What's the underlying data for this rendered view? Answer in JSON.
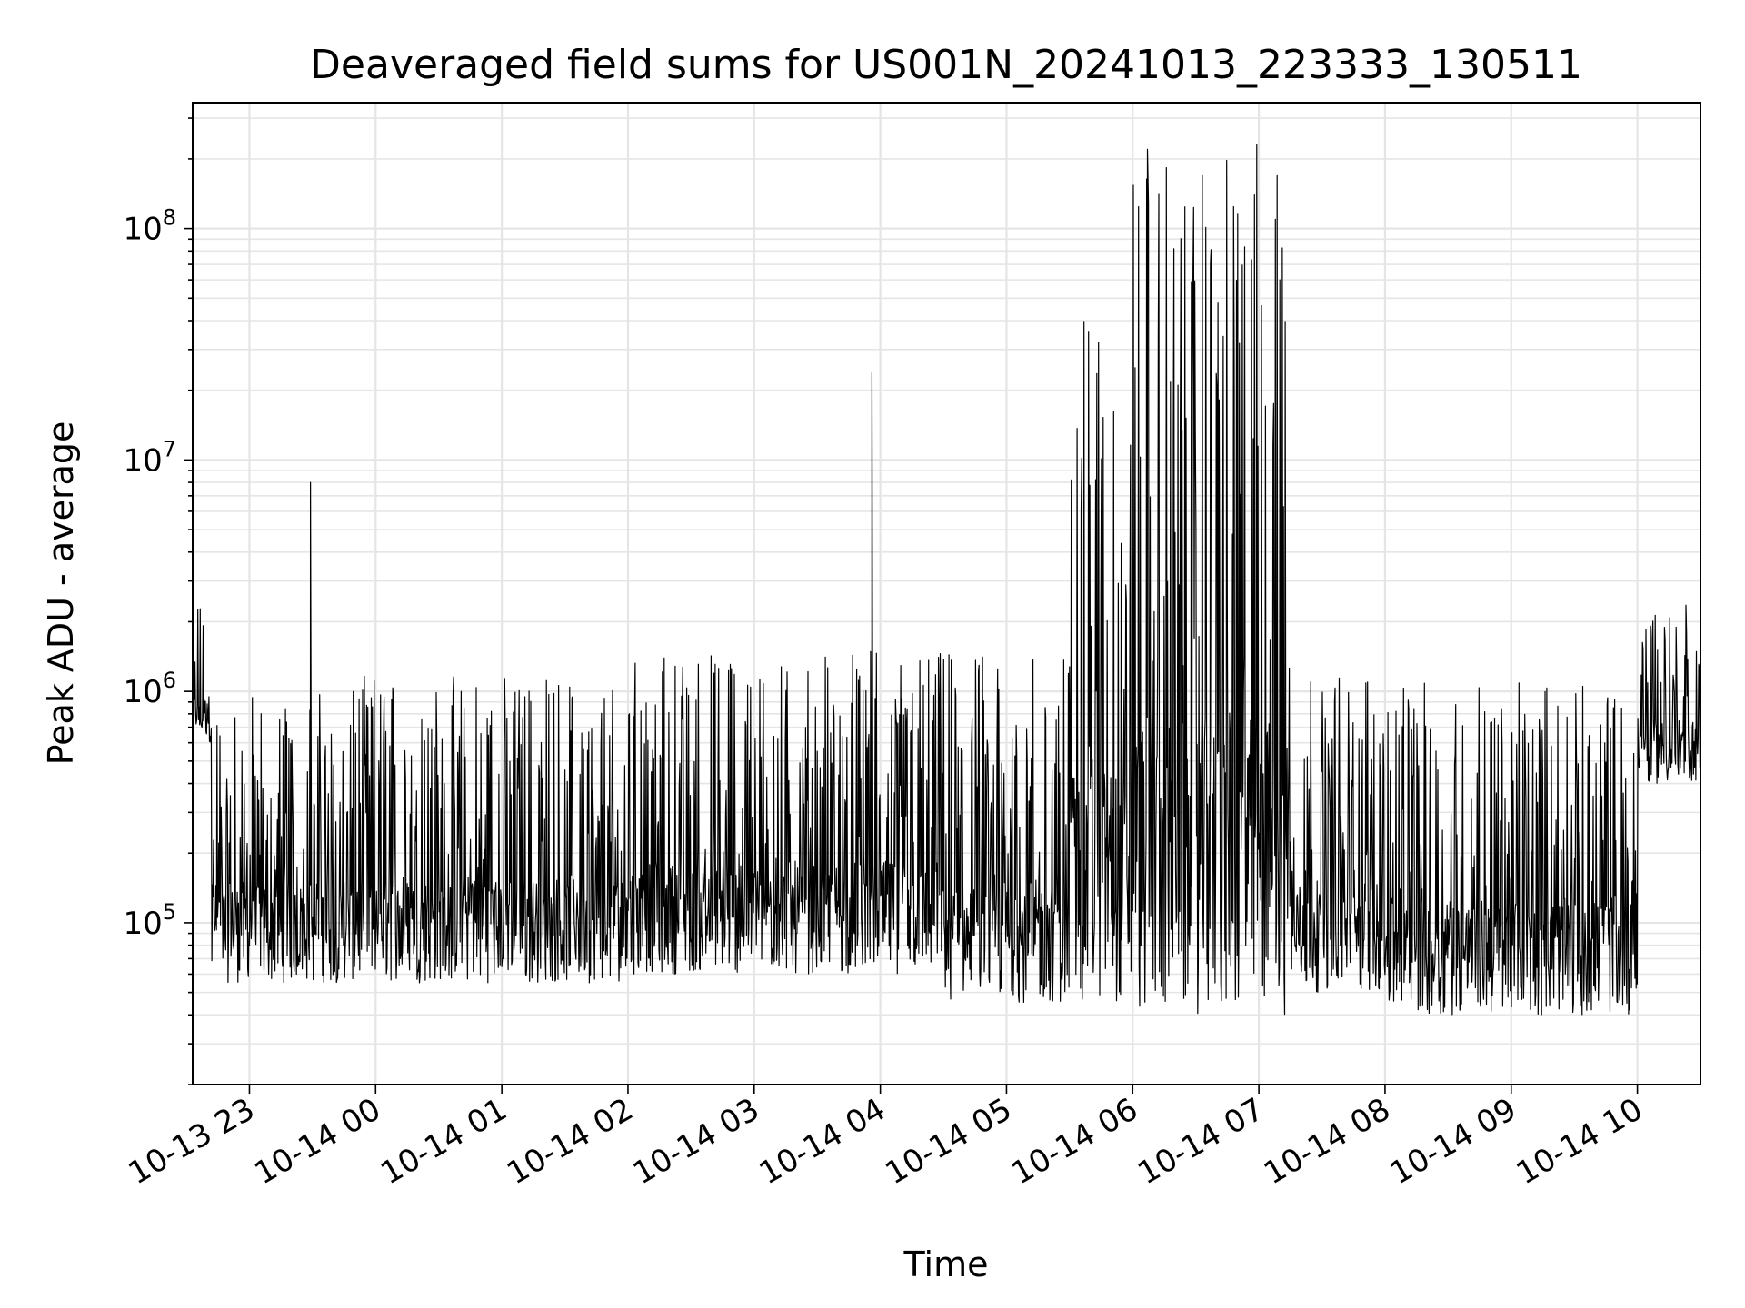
{
  "chart_data": {
    "type": "line",
    "title": "Deaveraged field sums for US001N_20241013_223333_130511",
    "xlabel": "Time",
    "ylabel": "Peak ADU - average",
    "y_scale": "log",
    "ylim": [
      20000,
      350000000
    ],
    "xlim": [
      "2024-10-13 22:33",
      "2024-10-14 10:30"
    ],
    "grid": true,
    "line_color": "#000000",
    "grid_color": "#e5e5e5",
    "x_ticks": [
      "2024-10-13 23:00",
      "2024-10-14 00:00",
      "2024-10-14 01:00",
      "2024-10-14 02:00",
      "2024-10-14 03:00",
      "2024-10-14 04:00",
      "2024-10-14 05:00",
      "2024-10-14 06:00",
      "2024-10-14 07:00",
      "2024-10-14 08:00",
      "2024-10-14 09:00",
      "2024-10-14 10:00"
    ],
    "x_tick_labels": [
      "10-13 23",
      "10-14 00",
      "10-14 01",
      "10-14 02",
      "10-14 03",
      "10-14 04",
      "10-14 05",
      "10-14 06",
      "10-14 07",
      "10-14 08",
      "10-14 09",
      "10-14 10"
    ],
    "y_ticks": [
      {
        "value": 100000,
        "base": "10",
        "exp": "5"
      },
      {
        "value": 1000000,
        "base": "10",
        "exp": "6"
      },
      {
        "value": 10000000,
        "base": "10",
        "exp": "7"
      },
      {
        "value": 100000000,
        "base": "10",
        "exp": "8"
      }
    ],
    "series": [
      {
        "segments": [
          {
            "start": "2024-10-13 22:33",
            "end": "2024-10-13 22:42",
            "floor": 600000,
            "high": 2400000
          },
          {
            "start": "2024-10-13 22:42",
            "end": "2024-10-13 23:50",
            "floor": 55000,
            "high": 1000000
          },
          {
            "start": "2024-10-13 23:50",
            "end": "2024-10-14 02:00",
            "floor": 55000,
            "high": 1200000
          },
          {
            "start": "2024-10-14 02:00",
            "end": "2024-10-14 04:30",
            "floor": 60000,
            "high": 1500000
          },
          {
            "start": "2024-10-14 04:30",
            "end": "2024-10-14 05:30",
            "floor": 45000,
            "high": 1500000
          },
          {
            "start": "2024-10-14 05:30",
            "end": "2024-10-14 06:00",
            "floor": 45000,
            "high": 40000000
          },
          {
            "start": "2024-10-14 06:00",
            "end": "2024-10-14 07:15",
            "floor": 40000,
            "high": 200000000
          },
          {
            "start": "2024-10-14 07:15",
            "end": "2024-10-14 08:00",
            "floor": 50000,
            "high": 1200000
          },
          {
            "start": "2024-10-14 08:00",
            "end": "2024-10-14 10:00",
            "floor": 40000,
            "high": 1100000
          },
          {
            "start": "2024-10-14 10:00",
            "end": "2024-10-14 10:30",
            "floor": 400000,
            "high": 2500000
          }
        ],
        "spikes": [
          {
            "time": "2024-10-13 23:29",
            "value": 8000000
          },
          {
            "time": "2024-10-14 03:56",
            "value": 24000000
          },
          {
            "time": "2024-10-14 06:07",
            "value": 220000000
          },
          {
            "time": "2024-10-14 06:59",
            "value": 230000000
          },
          {
            "time": "2024-10-14 05:39",
            "value": 36000000
          },
          {
            "time": "2024-10-14 07:10",
            "value": 60000000
          }
        ]
      }
    ]
  }
}
